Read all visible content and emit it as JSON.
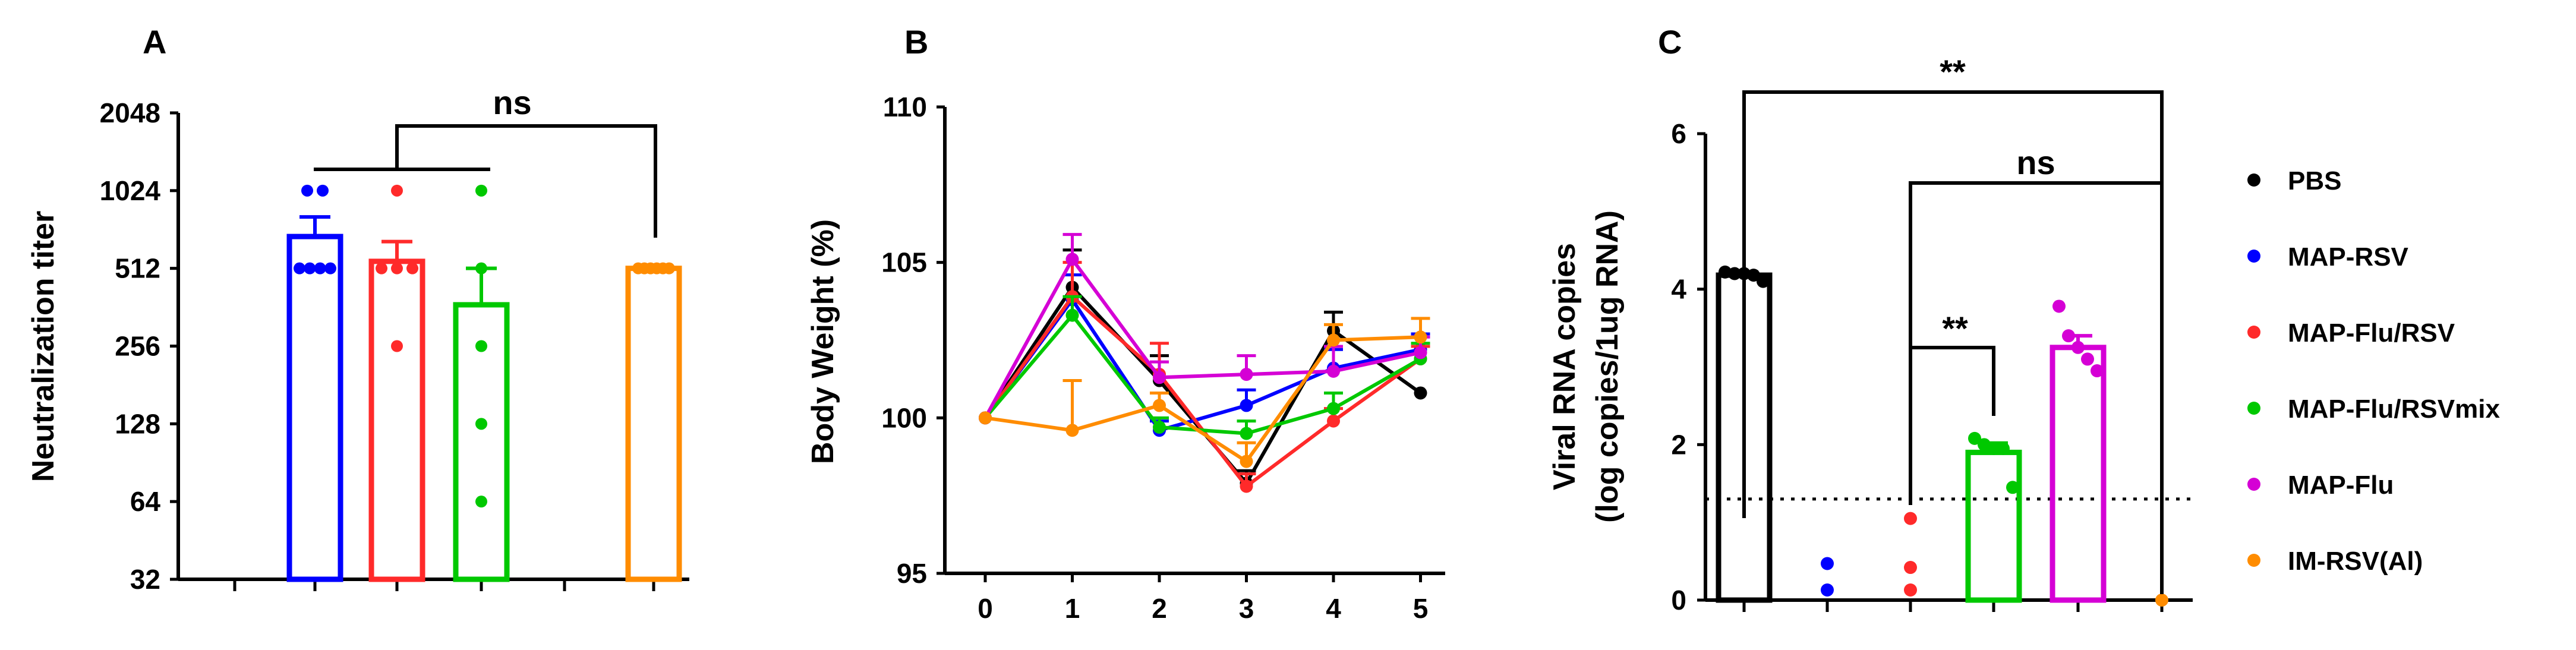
{
  "chart_data": [
    {
      "panel": "A",
      "type": "bar",
      "title": "",
      "xlabel": "",
      "ylabel": "Neutralization titer",
      "yscale": "log2",
      "ylim": [
        32,
        2048
      ],
      "yticks": [
        32,
        64,
        128,
        256,
        512,
        1024,
        2048
      ],
      "ytick_labels": [
        "32",
        "64",
        "128",
        "256",
        "512",
        "1024",
        "2048"
      ],
      "categories": [
        "MAP-RSV",
        "MAP-Flu/RSV",
        "MAP-Flu/RSVmix",
        "",
        "IM-RSV(Al)"
      ],
      "series": [
        {
          "name": "MAP-RSV",
          "color": "#0000ff",
          "mean": 680,
          "sem_upper": 810,
          "points": [
            1024,
            1024,
            512,
            512,
            512,
            512
          ]
        },
        {
          "name": "MAP-Flu/RSV",
          "color": "#ff2a2a",
          "mean": 545,
          "sem_upper": 650,
          "points": [
            1024,
            512,
            512,
            512,
            256
          ]
        },
        {
          "name": "MAP-Flu/RSVmix",
          "color": "#00c800",
          "mean": 370,
          "sem_upper": 512,
          "points": [
            1024,
            512,
            256,
            128,
            64
          ]
        },
        {
          "name": "IM-RSV(Al)",
          "color": "#ff8c00",
          "mean": 512,
          "sem_upper": 512,
          "points": [
            512,
            512,
            512,
            512,
            512,
            512
          ]
        }
      ],
      "annotations": [
        {
          "text": "ns",
          "between": [
            "MAP groups",
            "IM-RSV(Al)"
          ]
        }
      ]
    },
    {
      "panel": "B",
      "type": "line",
      "title": "",
      "xlabel": "",
      "ylabel": "Body Weight (%)",
      "x": [
        0,
        1,
        2,
        3,
        4,
        5
      ],
      "xtick_labels": [
        "0",
        "1",
        "2",
        "3",
        "4",
        "5"
      ],
      "ylim": [
        95,
        110
      ],
      "yticks": [
        95,
        100,
        105,
        110
      ],
      "ytick_labels": [
        "95",
        "100",
        "105",
        "110"
      ],
      "series": [
        {
          "name": "PBS",
          "color": "#000000",
          "values": [
            100,
            104.2,
            101.2,
            97.9,
            102.8,
            100.8
          ],
          "err": [
            0,
            1.2,
            0.8,
            0.4,
            0.6,
            0
          ]
        },
        {
          "name": "MAP-RSV",
          "color": "#0000ff",
          "values": [
            100,
            103.8,
            99.6,
            100.4,
            101.6,
            102.2
          ],
          "err": [
            0,
            0.8,
            0.3,
            0.5,
            0.6,
            0.5
          ]
        },
        {
          "name": "MAP-Flu/RSV",
          "color": "#ff2a2a",
          "values": [
            100,
            103.9,
            101.4,
            97.8,
            99.9,
            101.9
          ],
          "err": [
            0,
            1.1,
            1.0,
            0.4,
            0.4,
            0.4
          ]
        },
        {
          "name": "MAP-Flu/RSVmix",
          "color": "#00c800",
          "values": [
            100,
            103.3,
            99.7,
            99.5,
            100.3,
            101.9
          ],
          "err": [
            0,
            0.6,
            0.3,
            0.4,
            0.5,
            0.5
          ]
        },
        {
          "name": "MAP-Flu",
          "color": "#d500d5",
          "values": [
            100,
            105.1,
            101.3,
            101.4,
            101.5,
            102.1
          ],
          "err": [
            0,
            0.8,
            0.5,
            0.6,
            0.8,
            0.5
          ]
        },
        {
          "name": "IM-RSV(Al)",
          "color": "#ff8c00",
          "values": [
            100,
            99.6,
            100.4,
            98.6,
            102.5,
            102.6
          ],
          "err": [
            0,
            1.6,
            0.4,
            0.6,
            0.5,
            0.6
          ]
        }
      ]
    },
    {
      "panel": "C",
      "type": "bar",
      "title": "",
      "xlabel": "",
      "ylabel": [
        "Viral RNA copies",
        "(log copies/1ug RNA)"
      ],
      "ylim": [
        0,
        6
      ],
      "yticks": [
        0,
        2,
        4,
        6
      ],
      "ytick_labels": [
        "0",
        "2",
        "4",
        "6"
      ],
      "detection_limit": 1.3,
      "categories": [
        "PBS",
        "MAP-RSV",
        "MAP-Flu/RSV",
        "MAP-Flu/RSVmix",
        "MAP-Flu",
        "IM-RSV(Al)"
      ],
      "series": [
        {
          "name": "PBS",
          "color": "#000000",
          "mean": 4.18,
          "sem_upper": 4.22,
          "points": [
            4.22,
            4.2,
            4.2,
            4.18,
            4.1
          ]
        },
        {
          "name": "MAP-RSV",
          "color": "#0000ff",
          "mean": 0,
          "sem_upper": 0,
          "points": [
            0.47,
            0.13
          ]
        },
        {
          "name": "MAP-Flu/RSV",
          "color": "#ff2a2a",
          "mean": 0,
          "sem_upper": 0,
          "points": [
            1.05,
            0.42,
            0.13
          ]
        },
        {
          "name": "MAP-Flu/RSVmix",
          "color": "#00c800",
          "mean": 1.9,
          "sem_upper": 2.02,
          "points": [
            2.08,
            2.0,
            1.95,
            1.95,
            1.45
          ]
        },
        {
          "name": "MAP-Flu",
          "color": "#d500d5",
          "mean": 3.25,
          "sem_upper": 3.4,
          "points": [
            3.78,
            3.4,
            3.25,
            3.1,
            2.95
          ]
        },
        {
          "name": "IM-RSV(Al)",
          "color": "#ff8c00",
          "mean": 0,
          "sem_upper": 0,
          "points": [
            0
          ]
        }
      ],
      "annotations": [
        {
          "text": "**",
          "between": [
            "PBS",
            "IM-RSV(Al)"
          ]
        },
        {
          "text": "ns",
          "between": [
            "MAP-Flu/RSV",
            "IM-RSV(Al)"
          ]
        },
        {
          "text": "**",
          "between": [
            "MAP-Flu/RSV",
            "MAP-Flu/RSVmix"
          ]
        }
      ]
    }
  ],
  "panels": {
    "A": {
      "letter": "A",
      "sig": "ns"
    },
    "B": {
      "letter": "B"
    },
    "C": {
      "letter": "C",
      "sig_outer": "**",
      "sig_middle": "ns",
      "sig_inner": "**"
    }
  },
  "legend": [
    {
      "label": "PBS",
      "color": "#000000"
    },
    {
      "label": "MAP-RSV",
      "color": "#0000ff"
    },
    {
      "label": "MAP-Flu/RSV",
      "color": "#ff2a2a"
    },
    {
      "label": "MAP-Flu/RSVmix",
      "color": "#00c800"
    },
    {
      "label": "MAP-Flu",
      "color": "#d500d5"
    },
    {
      "label": "IM-RSV(Al)",
      "color": "#ff8c00"
    }
  ]
}
